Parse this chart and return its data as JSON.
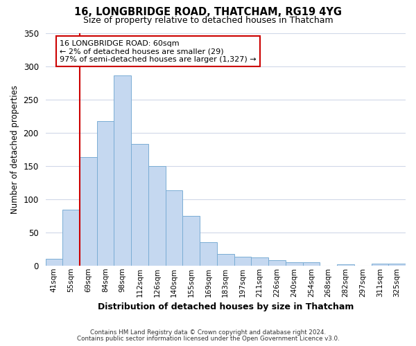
{
  "title": "16, LONGBRIDGE ROAD, THATCHAM, RG19 4YG",
  "subtitle": "Size of property relative to detached houses in Thatcham",
  "xlabel": "Distribution of detached houses by size in Thatcham",
  "ylabel": "Number of detached properties",
  "bar_labels": [
    "41sqm",
    "55sqm",
    "69sqm",
    "84sqm",
    "98sqm",
    "112sqm",
    "126sqm",
    "140sqm",
    "155sqm",
    "169sqm",
    "183sqm",
    "197sqm",
    "211sqm",
    "226sqm",
    "240sqm",
    "254sqm",
    "268sqm",
    "282sqm",
    "297sqm",
    "311sqm",
    "325sqm"
  ],
  "bar_values": [
    10,
    84,
    163,
    217,
    286,
    183,
    150,
    113,
    75,
    35,
    17,
    13,
    12,
    8,
    5,
    5,
    0,
    2,
    0,
    3,
    3
  ],
  "bar_color": "#c5d8f0",
  "bar_edge_color": "#7aadd4",
  "vline_x": 1.5,
  "vline_color": "#cc0000",
  "ylim": [
    0,
    350
  ],
  "yticks": [
    0,
    50,
    100,
    150,
    200,
    250,
    300,
    350
  ],
  "annotation_text": "16 LONGBRIDGE ROAD: 60sqm\n← 2% of detached houses are smaller (29)\n97% of semi-detached houses are larger (1,327) →",
  "annotation_box_color": "#ffffff",
  "annotation_box_edge": "#cc0000",
  "footer_line1": "Contains HM Land Registry data © Crown copyright and database right 2024.",
  "footer_line2": "Contains public sector information licensed under the Open Government Licence v3.0.",
  "bg_color": "#ffffff",
  "grid_color": "#d0d8e8"
}
